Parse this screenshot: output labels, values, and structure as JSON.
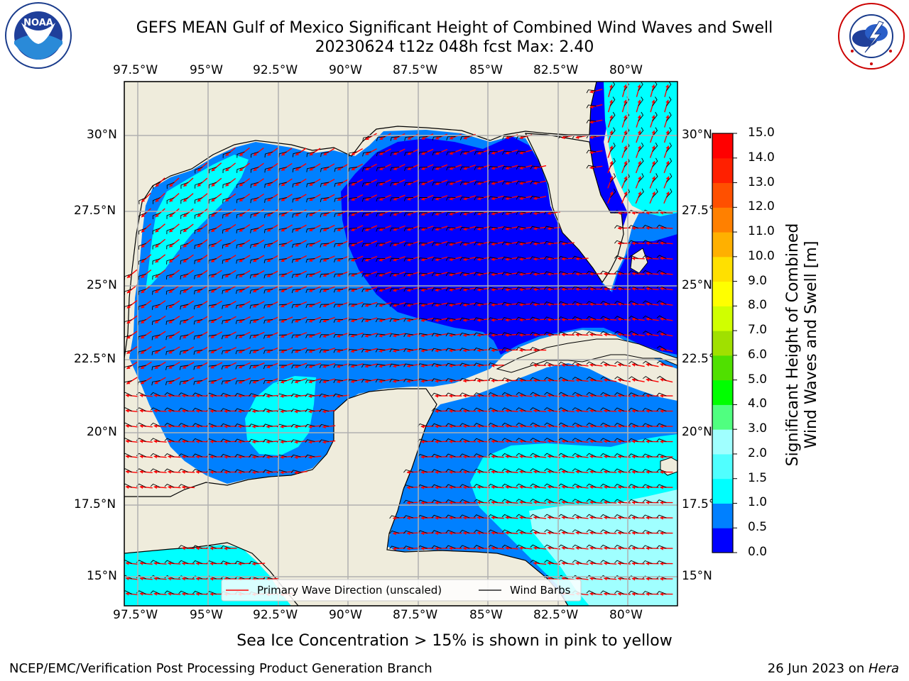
{
  "title_line1": "GEFS MEAN Gulf of Mexico Significant Height of Combined Wind Waves and Swell",
  "title_line2": "20230624 t12z 048h fcst   Max: 2.40",
  "lon_labels": [
    "97.5°W",
    "95°W",
    "92.5°W",
    "90°W",
    "87.5°W",
    "85°W",
    "82.5°W",
    "80°W"
  ],
  "lat_labels": [
    "30°N",
    "27.5°N",
    "25°N",
    "22.5°N",
    "20°N",
    "17.5°N",
    "15°N"
  ],
  "legend": {
    "wave_dir": "Primary Wave Direction (unscaled)",
    "wind_barbs": "Wind Barbs"
  },
  "colorbar": {
    "title_line1": "Significant Height of Combined",
    "title_line2": "Wind Waves and Swell [m]",
    "ticks": [
      "0.0",
      "0.5",
      "1.0",
      "1.5",
      "2.0",
      "3.0",
      "4.0",
      "5.0",
      "6.0",
      "7.0",
      "8.0",
      "9.0",
      "10.0",
      "11.0",
      "12.0",
      "13.0",
      "14.0",
      "15.0"
    ],
    "colors": [
      "#0000ff",
      "#0080ff",
      "#00ffff",
      "#50ffff",
      "#a0ffff",
      "#50ff80",
      "#00ff00",
      "#50e000",
      "#a0e000",
      "#d0ff00",
      "#ffff00",
      "#ffe000",
      "#ffb000",
      "#ff8000",
      "#ff5000",
      "#ff2000",
      "#ff0000"
    ]
  },
  "note": "Sea Ice Concentration > 15% is shown in pink to yellow",
  "footer_left": "NCEP/EMC/Verification Post Processing Product Generation Branch",
  "footer_right_date": "26 Jun 2023 on ",
  "footer_right_host": "Hera",
  "noaa_logo_text": "NOAA",
  "nws_logo_text": "NATIONAL WEATHER SERVICE",
  "colors": {
    "land": "#efecdc",
    "deep_blue": "#0000ff",
    "mid_blue": "#0080ff",
    "cyan": "#00ffff",
    "light_cyan": "#a0ffff",
    "arrow": "#ff0000",
    "grid": "#b0b0b0"
  }
}
